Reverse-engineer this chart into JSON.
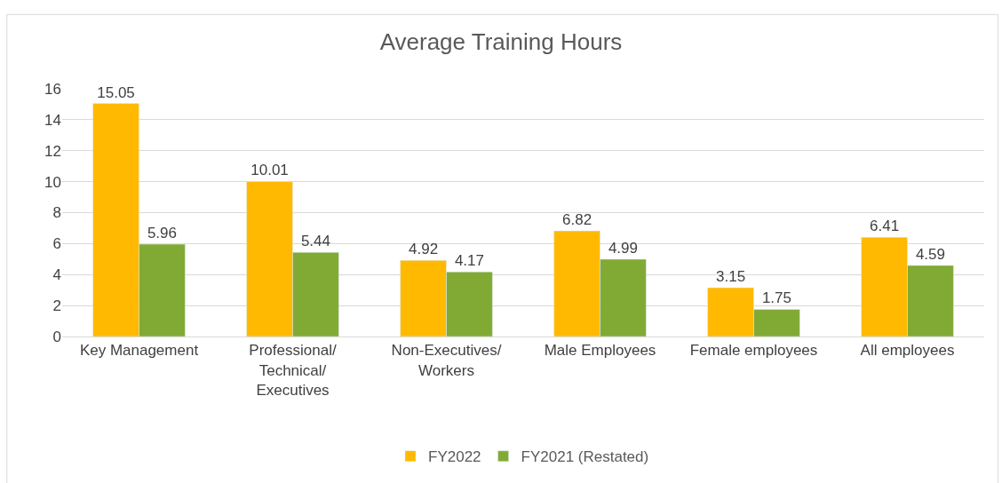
{
  "chart_data": {
    "type": "bar",
    "title": "Average Training Hours",
    "categories": [
      "Key Management",
      "Professional/Technical/Executives",
      "Non-Executives/Workers",
      "Male Employees",
      "Female employees",
      "All employees"
    ],
    "series": [
      {
        "name": "FY2022",
        "color": "#ffb900",
        "values": [
          15.05,
          10.01,
          4.92,
          6.82,
          3.15,
          6.41
        ]
      },
      {
        "name": "FY2021 (Restated)",
        "color": "#80aa33",
        "values": [
          5.96,
          5.44,
          4.17,
          4.99,
          1.75,
          4.59
        ]
      }
    ],
    "ylim": [
      0,
      16
    ],
    "yticks": [
      0,
      2,
      4,
      6,
      8,
      10,
      12,
      14,
      16
    ],
    "grid": "y",
    "legend": "bottom",
    "data_labels": true
  }
}
